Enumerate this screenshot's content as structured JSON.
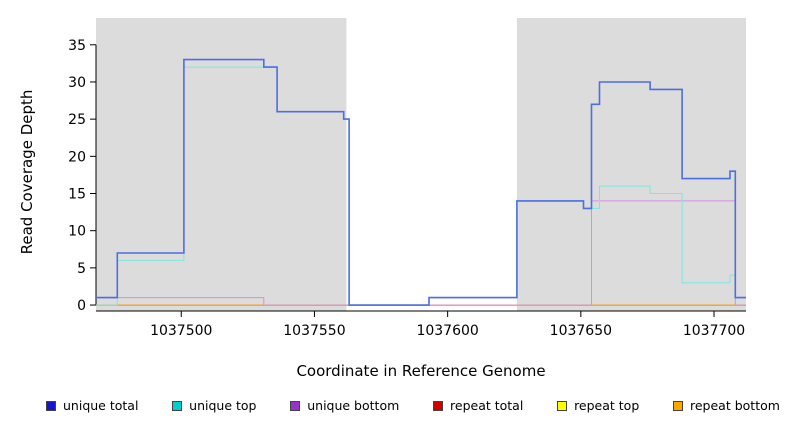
{
  "figure": {
    "background": "#FFFFFF",
    "region_highlight_color": "#DCDCDC",
    "axis_color": "#000000"
  },
  "chart_data": {
    "type": "line",
    "subtype": "step",
    "title": "",
    "xlabel": "Coordinate in Reference Genome",
    "ylabel": "Read Coverage Depth",
    "xlim": [
      1037468,
      1037712
    ],
    "ylim": [
      0,
      35
    ],
    "x_ticks": [
      1037500,
      1037550,
      1037600,
      1037650,
      1037700
    ],
    "y_ticks": [
      0,
      5,
      10,
      15,
      20,
      25,
      30,
      35
    ],
    "grid": false,
    "legend_position": "bottom",
    "shaded_regions": [
      {
        "from": 1037468,
        "to": 1037562,
        "color": "#DCDCDC"
      },
      {
        "from": 1037626,
        "to": 1037712,
        "color": "#DCDCDC"
      }
    ],
    "series": [
      {
        "name": "repeat total",
        "color": "#CD0000",
        "line_color": "#CD0000",
        "width": 1,
        "points": [
          [
            1037468,
            0
          ],
          [
            1037712,
            0
          ]
        ]
      },
      {
        "name": "repeat top",
        "color": "#FFFF00",
        "line_color": "#F0E030",
        "width": 1,
        "points": [
          [
            1037468,
            0
          ],
          [
            1037712,
            0
          ]
        ]
      },
      {
        "name": "repeat bottom",
        "color": "#FFA500",
        "line_color": "#FFA020",
        "width": 1,
        "points": [
          [
            1037468,
            0
          ],
          [
            1037531,
            0
          ],
          [
            1037654,
            0
          ],
          [
            1037712,
            0
          ]
        ]
      },
      {
        "name": "unique bottom",
        "color": "#9932CC",
        "line_color": "#D48FE0",
        "width": 1,
        "points": [
          [
            1037468,
            1
          ],
          [
            1037531,
            0
          ],
          [
            1037654,
            14
          ],
          [
            1037708,
            0
          ],
          [
            1037712,
            0
          ]
        ]
      },
      {
        "name": "unique top",
        "color": "#00CED1",
        "line_color": "#7FE6DF",
        "width": 1,
        "points": [
          [
            1037468,
            0
          ],
          [
            1037476,
            6
          ],
          [
            1037501,
            32
          ],
          [
            1037536,
            26
          ],
          [
            1037561,
            25
          ],
          [
            1037563,
            0
          ],
          [
            1037593,
            1
          ],
          [
            1037626,
            14
          ],
          [
            1037651,
            13
          ],
          [
            1037657,
            16
          ],
          [
            1037676,
            15
          ],
          [
            1037688,
            3
          ],
          [
            1037706,
            4
          ],
          [
            1037708,
            1
          ],
          [
            1037712,
            1
          ]
        ]
      },
      {
        "name": "unique total",
        "color": "#1515CD",
        "line_color": "#4A6FE0",
        "width": 1.6,
        "points": [
          [
            1037468,
            1
          ],
          [
            1037476,
            7
          ],
          [
            1037501,
            33
          ],
          [
            1037531,
            32
          ],
          [
            1037536,
            26
          ],
          [
            1037561,
            25
          ],
          [
            1037563,
            0
          ],
          [
            1037593,
            1
          ],
          [
            1037626,
            14
          ],
          [
            1037651,
            13
          ],
          [
            1037654,
            27
          ],
          [
            1037657,
            30
          ],
          [
            1037676,
            29
          ],
          [
            1037688,
            17
          ],
          [
            1037706,
            18
          ],
          [
            1037708,
            1
          ],
          [
            1037712,
            1
          ]
        ]
      }
    ],
    "legend_order": [
      "unique total",
      "unique top",
      "unique bottom",
      "repeat total",
      "repeat top",
      "repeat bottom"
    ]
  }
}
